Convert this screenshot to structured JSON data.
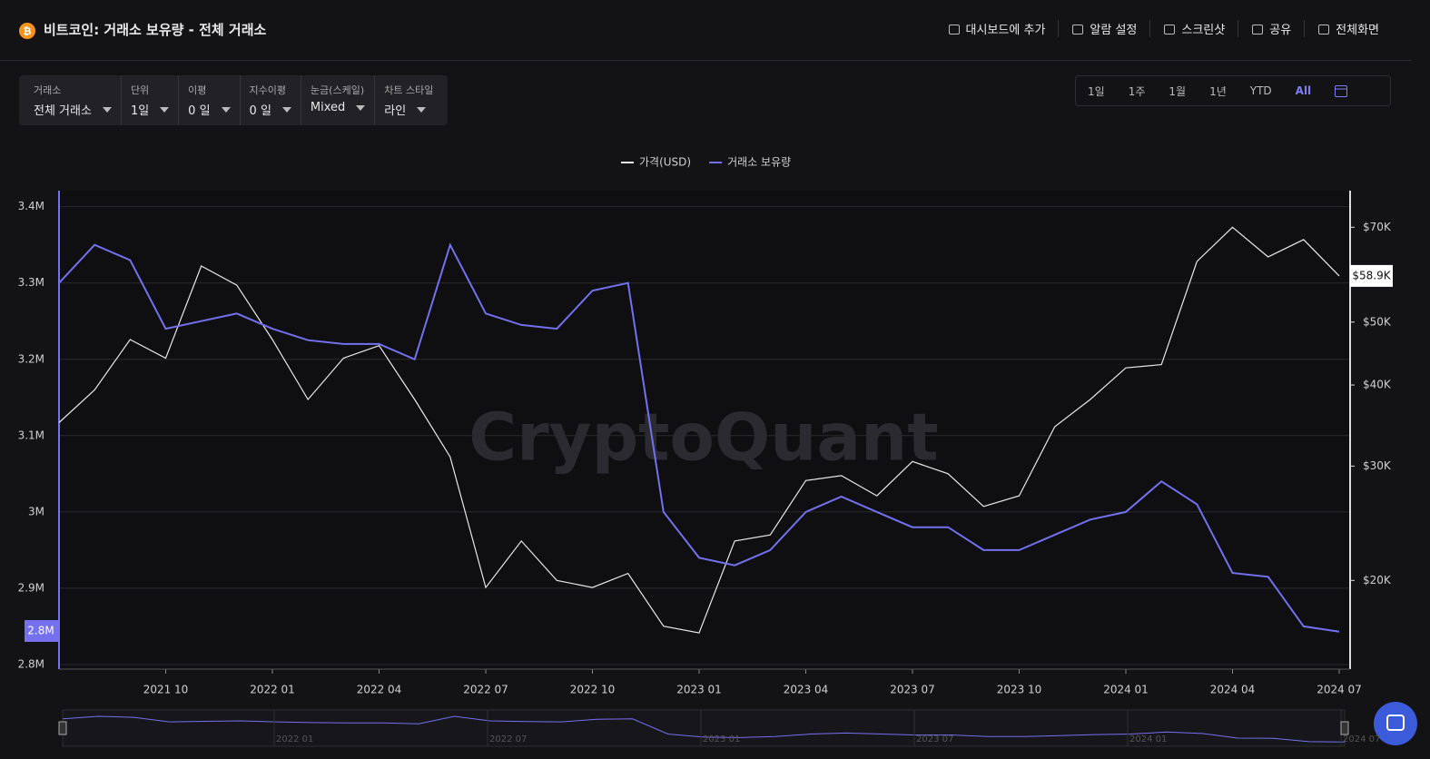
{
  "header": {
    "title": "비트코인: 거래소 보유량 - 전체 거래소",
    "actions": [
      "대시보드에 추가",
      "알람 설정",
      "스크린샷",
      "공유",
      "전체화면"
    ]
  },
  "filters": [
    {
      "label": "거래소",
      "value": "전체 거래소"
    },
    {
      "label": "단위",
      "value": "1일"
    },
    {
      "label": "이평",
      "value": "0 일"
    },
    {
      "label": "지수이평",
      "value": "0 일"
    },
    {
      "label": "눈금(스케일)",
      "value": "Mixed"
    },
    {
      "label": "차트 스타일",
      "value": "라인"
    }
  ],
  "ranges": {
    "options": [
      "1일",
      "1주",
      "1월",
      "1년",
      "YTD",
      "All"
    ],
    "selected": "All"
  },
  "chart_data": {
    "type": "line",
    "watermark": "CryptoQuant",
    "grid": true,
    "legend": "top",
    "x": [
      "2021-07",
      "2021-08",
      "2021-09",
      "2021-10",
      "2021-11",
      "2021-12",
      "2022-01",
      "2022-02",
      "2022-03",
      "2022-04",
      "2022-05",
      "2022-06",
      "2022-07",
      "2022-08",
      "2022-09",
      "2022-10",
      "2022-11",
      "2022-12",
      "2023-01",
      "2023-02",
      "2023-03",
      "2023-04",
      "2023-05",
      "2023-06",
      "2023-07",
      "2023-08",
      "2023-09",
      "2023-10",
      "2023-11",
      "2023-12",
      "2024-01",
      "2024-02",
      "2024-03",
      "2024-04",
      "2024-05",
      "2024-06",
      "2024-07"
    ],
    "series": [
      {
        "name": "가격(USD)",
        "color": "#e8e8e8",
        "axis": "y2",
        "values": [
          35000,
          39300,
          47000,
          44000,
          61000,
          57000,
          47000,
          38000,
          44000,
          46000,
          38000,
          31000,
          19500,
          23000,
          20000,
          19500,
          20500,
          17000,
          16600,
          23000,
          23500,
          28500,
          29000,
          27000,
          30500,
          29200,
          26000,
          27000,
          34500,
          38000,
          42500,
          43000,
          62000,
          70000,
          63000,
          67000,
          58900
        ]
      },
      {
        "name": "거래소 보유량",
        "color": "#7470ee",
        "values": [
          3300000,
          3350000,
          3330000,
          3240000,
          3250000,
          3260000,
          3240000,
          3225000,
          3220000,
          3220000,
          3200000,
          3350000,
          3260000,
          3245000,
          3240000,
          3290000,
          3300000,
          3000000,
          2940000,
          2930000,
          2950000,
          3000000,
          3020000,
          3000000,
          2980000,
          2980000,
          2950000,
          2950000,
          2970000,
          2990000,
          3000000,
          3040000,
          3010000,
          2920000,
          2915000,
          2850000,
          2843000
        ]
      }
    ],
    "xlim": [
      "2021-07",
      "2024-07"
    ],
    "xticks": [
      {
        "value": "2021-10",
        "label": "2021 10"
      },
      {
        "value": "2022-01",
        "label": "2022 01"
      },
      {
        "value": "2022-04",
        "label": "2022 04"
      },
      {
        "value": "2022-07",
        "label": "2022 07"
      },
      {
        "value": "2022-10",
        "label": "2022 10"
      },
      {
        "value": "2023-01",
        "label": "2023 01"
      },
      {
        "value": "2023-04",
        "label": "2023 04"
      },
      {
        "value": "2023-07",
        "label": "2023 07"
      },
      {
        "value": "2023-10",
        "label": "2023 10"
      },
      {
        "value": "2024-01",
        "label": "2024 01"
      },
      {
        "value": "2024-04",
        "label": "2024 04"
      },
      {
        "value": "2024-07",
        "label": "2024 07"
      }
    ],
    "ylim": [
      2794000,
      3421000
    ],
    "yticks": [
      {
        "value": 2800000,
        "label": "2.8M"
      },
      {
        "value": 2900000,
        "label": "2.9M"
      },
      {
        "value": 3000000,
        "label": "3M"
      },
      {
        "value": 3100000,
        "label": "3.1M"
      },
      {
        "value": 3200000,
        "label": "3.2M"
      },
      {
        "value": 3300000,
        "label": "3.3M"
      },
      {
        "value": 3400000,
        "label": "3.4M"
      }
    ],
    "y2lim": [
      14600,
      79700
    ],
    "y2log": true,
    "y2ticks": [
      {
        "value": 20000,
        "label": "$20K"
      },
      {
        "value": 30000,
        "label": "$30K"
      },
      {
        "value": 40000,
        "label": "$40K"
      },
      {
        "value": 50000,
        "label": "$50K"
      },
      {
        "value": 70000,
        "label": "$70K"
      }
    ],
    "cursor": {
      "y": {
        "value": 2844000,
        "label": "2.8M"
      },
      "y2": {
        "value": 58900,
        "label": "$58.9K"
      }
    }
  },
  "navigator": {
    "labels": [
      "2022 01",
      "2022 07",
      "2023 01",
      "2023 07",
      "2024 01",
      "2024 07"
    ]
  }
}
